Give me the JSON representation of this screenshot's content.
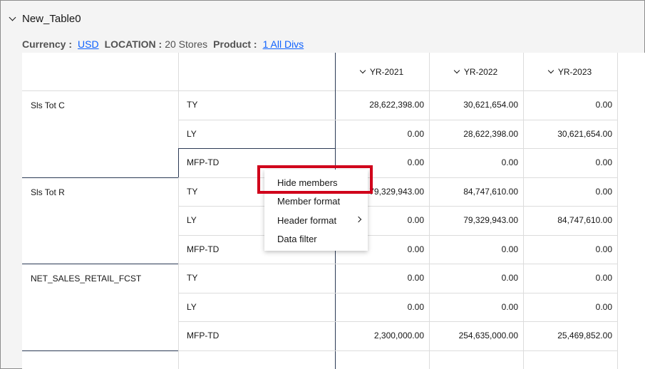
{
  "table_title": "New_Table0",
  "filters": [
    {
      "label": "Currency :",
      "value": "USD",
      "link": true
    },
    {
      "label": "LOCATION :",
      "value": "20 Stores",
      "link": false
    },
    {
      "label": "Product :",
      "value": "1 All Divs",
      "link": true
    }
  ],
  "columns": [
    "YR-2021",
    "YR-2022",
    "YR-2023"
  ],
  "measures": [
    {
      "name": "Sls Tot C",
      "rows": [
        {
          "label": "TY",
          "values": [
            "28,622,398.00",
            "30,621,654.00",
            "0.00"
          ]
        },
        {
          "label": "LY",
          "values": [
            "0.00",
            "28,622,398.00",
            "30,621,654.00"
          ]
        },
        {
          "label": "MFP-TD",
          "values": [
            "0.00",
            "0.00",
            "0.00"
          ]
        }
      ]
    },
    {
      "name": "Sls Tot R",
      "rows": [
        {
          "label": "TY",
          "values": [
            "79,329,943.00",
            "84,747,610.00",
            "0.00"
          ]
        },
        {
          "label": "LY",
          "values": [
            "0.00",
            "79,329,943.00",
            "84,747,610.00"
          ]
        },
        {
          "label": "MFP-TD",
          "values": [
            "0.00",
            "0.00",
            "0.00"
          ]
        }
      ]
    },
    {
      "name": "NET_SALES_RETAIL_FCST",
      "rows": [
        {
          "label": "TY",
          "values": [
            "0.00",
            "0.00",
            "0.00"
          ]
        },
        {
          "label": "LY",
          "values": [
            "0.00",
            "0.00",
            "0.00"
          ]
        },
        {
          "label": "MFP-TD",
          "values": [
            "2,300,000.00",
            "254,635,000.00",
            "25,469,852.00"
          ]
        }
      ]
    }
  ],
  "context_menu": {
    "items": [
      {
        "label": "Hide members",
        "submenu": false
      },
      {
        "label": "Member format",
        "submenu": false
      },
      {
        "label": "Header format",
        "submenu": true
      },
      {
        "label": "Data filter",
        "submenu": false
      }
    ]
  },
  "colors": {
    "link": "#0f62fe",
    "highlight": "#d0021b",
    "group_border": "#2b3a55"
  },
  "icons": {
    "collapse": "chevron-down-icon",
    "submenu": "chevron-right-icon"
  }
}
